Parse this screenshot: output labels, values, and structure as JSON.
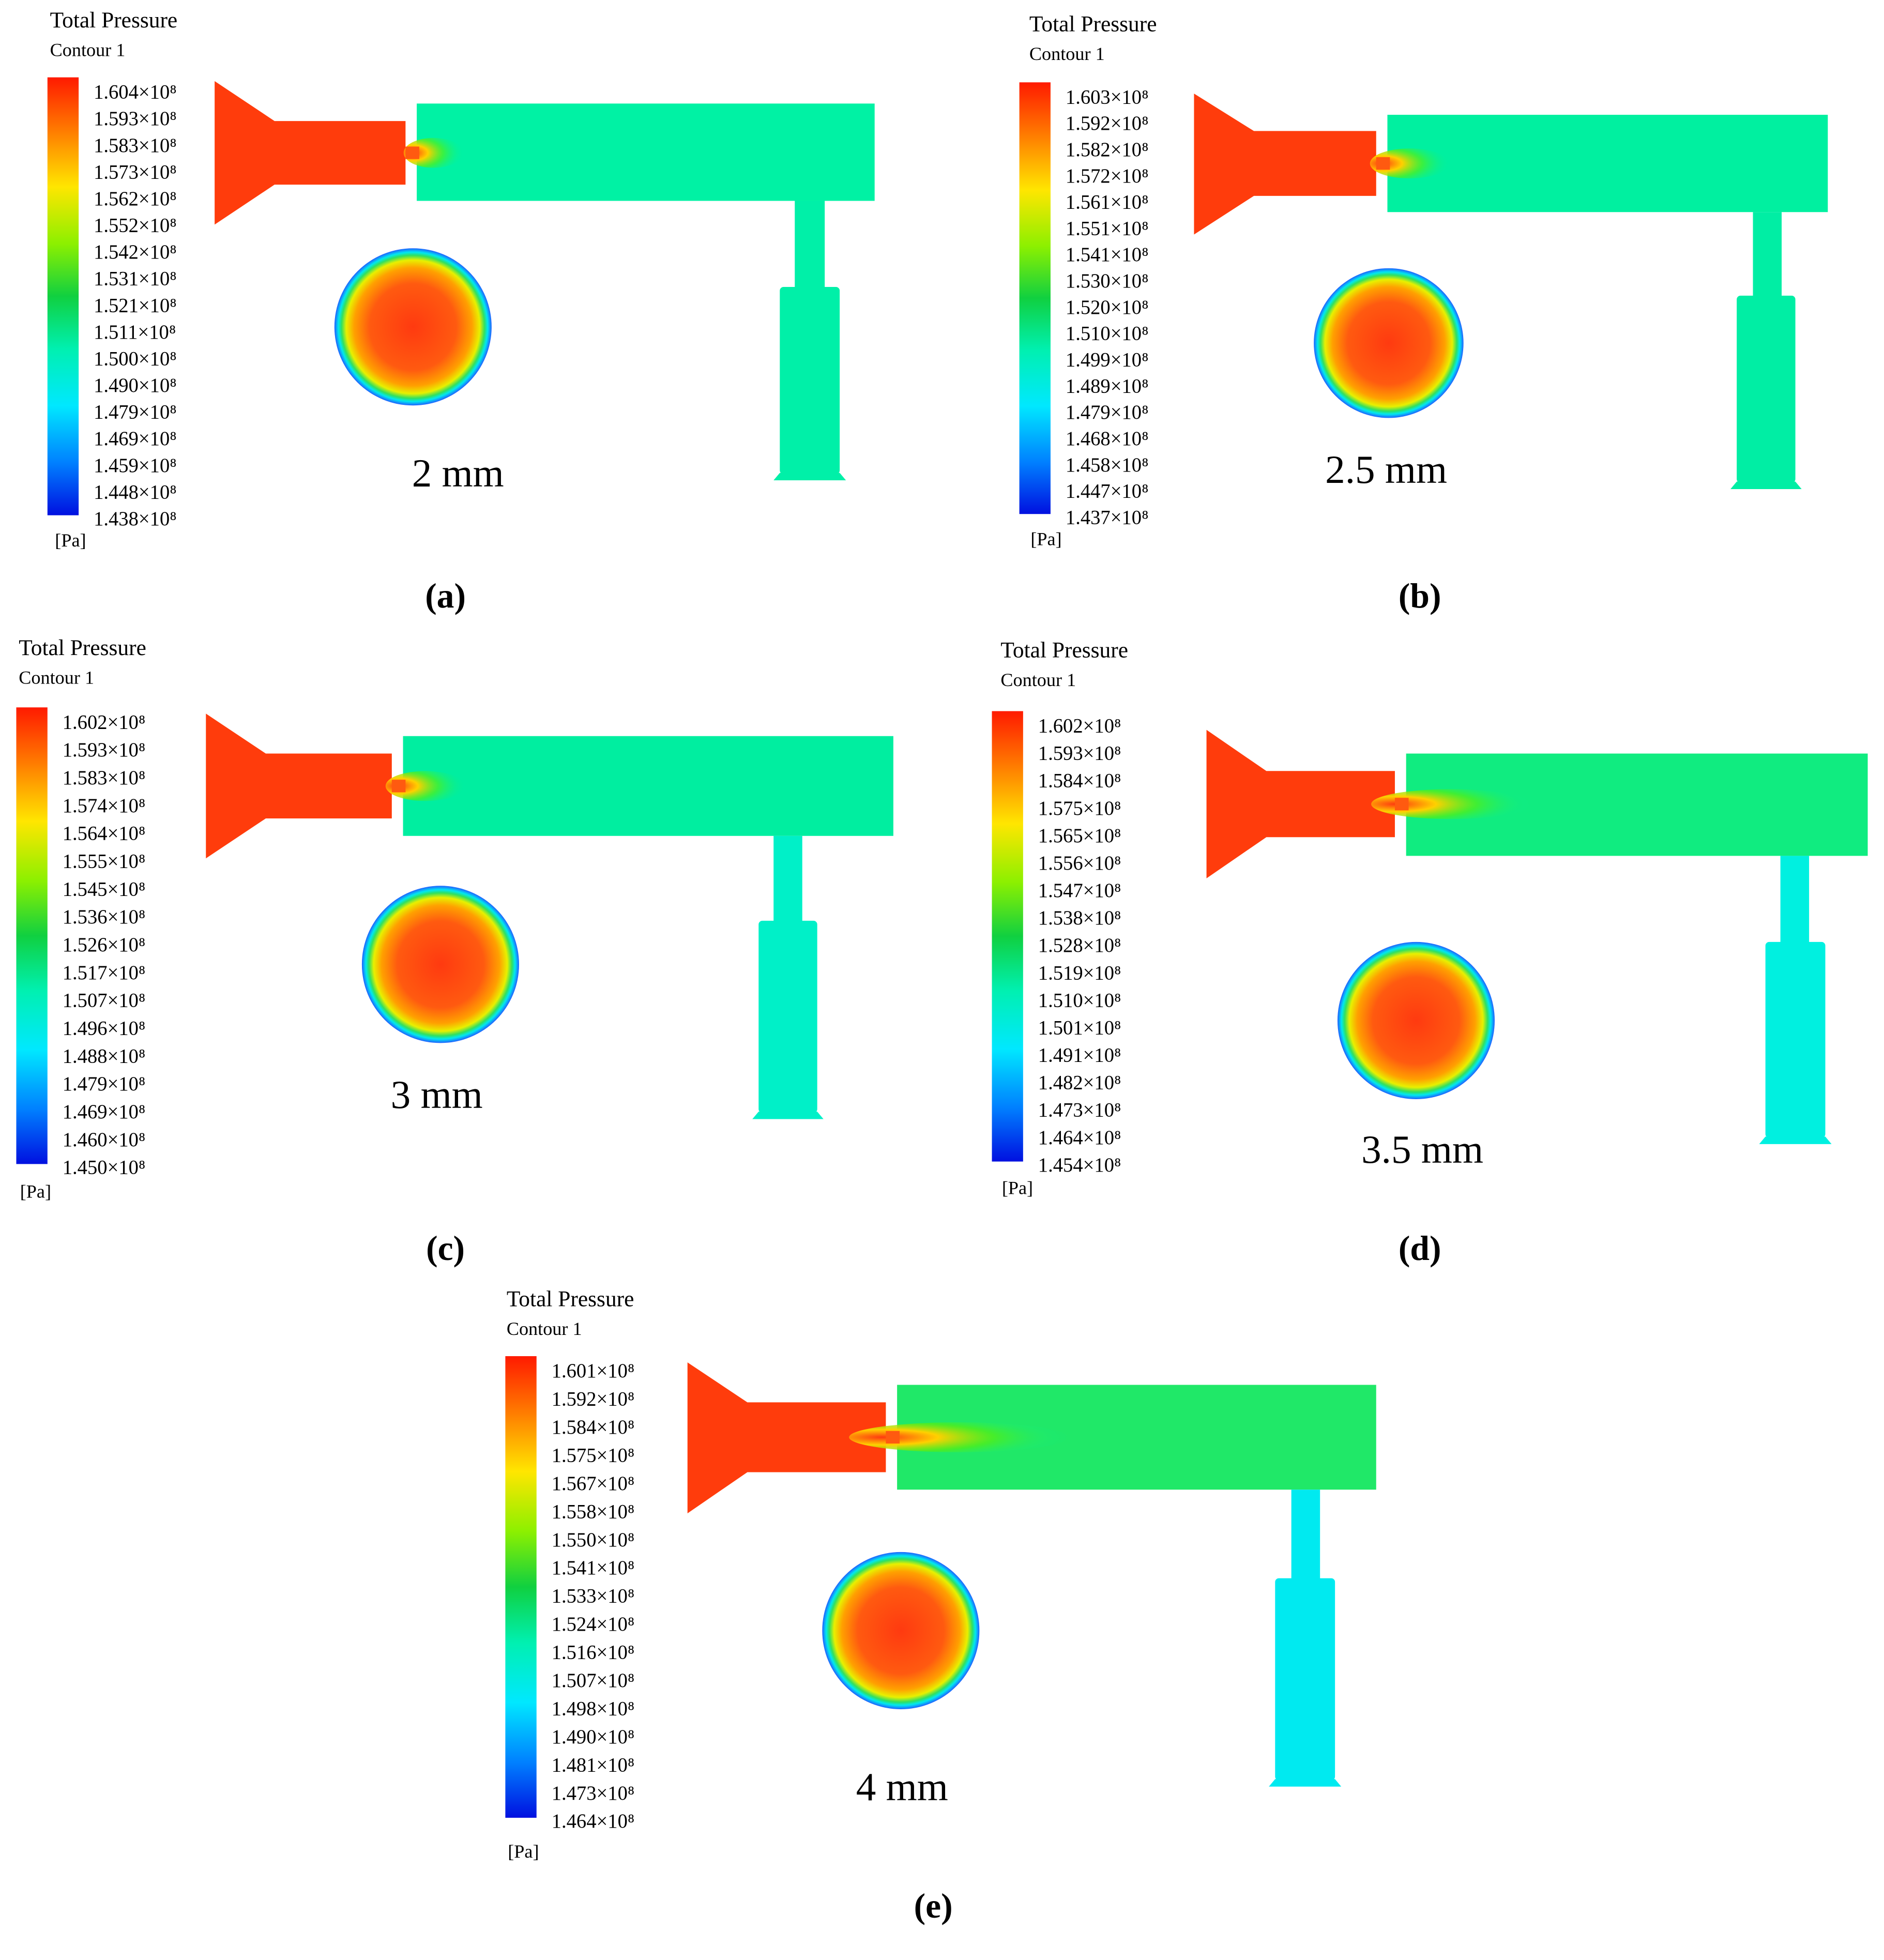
{
  "panels": [
    {
      "title": "Total Pressure",
      "subtitle": "Contour 1",
      "colorbar_labels": [
        "1.604×10⁸",
        "1.593×10⁸",
        "1.583×10⁸",
        "1.573×10⁸",
        "1.562×10⁸",
        "1.552×10⁸",
        "1.542×10⁸",
        "1.531×10⁸",
        "1.521×10⁸",
        "1.511×10⁸",
        "1.500×10⁸",
        "1.490×10⁸",
        "1.479×10⁸",
        "1.469×10⁸",
        "1.459×10⁸",
        "1.448×10⁸",
        "1.438×10⁸"
      ],
      "unit": "[Pa]",
      "dimension": "2 mm",
      "label": "(a)"
    },
    {
      "title": "Total Pressure",
      "subtitle": "Contour 1",
      "colorbar_labels": [
        "1.603×10⁸",
        "1.592×10⁸",
        "1.582×10⁸",
        "1.572×10⁸",
        "1.561×10⁸",
        "1.551×10⁸",
        "1.541×10⁸",
        "1.530×10⁸",
        "1.520×10⁸",
        "1.510×10⁸",
        "1.499×10⁸",
        "1.489×10⁸",
        "1.479×10⁸",
        "1.468×10⁸",
        "1.458×10⁸",
        "1.447×10⁸",
        "1.437×10⁸"
      ],
      "unit": "[Pa]",
      "dimension": "2.5 mm",
      "label": "(b)"
    },
    {
      "title": "Total Pressure",
      "subtitle": "Contour 1",
      "colorbar_labels": [
        "1.602×10⁸",
        "1.593×10⁸",
        "1.583×10⁸",
        "1.574×10⁸",
        "1.564×10⁸",
        "1.555×10⁸",
        "1.545×10⁸",
        "1.536×10⁸",
        "1.526×10⁸",
        "1.517×10⁸",
        "1.507×10⁸",
        "1.496×10⁸",
        "1.488×10⁸",
        "1.479×10⁸",
        "1.469×10⁸",
        "1.460×10⁸",
        "1.450×10⁸"
      ],
      "unit": "[Pa]",
      "dimension": "3 mm",
      "label": "(c)"
    },
    {
      "title": "Total Pressure",
      "subtitle": "Contour 1",
      "colorbar_labels": [
        "1.602×10⁸",
        "1.593×10⁸",
        "1.584×10⁸",
        "1.575×10⁸",
        "1.565×10⁸",
        "1.556×10⁸",
        "1.547×10⁸",
        "1.538×10⁸",
        "1.528×10⁸",
        "1.519×10⁸",
        "1.510×10⁸",
        "1.501×10⁸",
        "1.491×10⁸",
        "1.482×10⁸",
        "1.473×10⁸",
        "1.464×10⁸",
        "1.454×10⁸"
      ],
      "unit": "[Pa]",
      "dimension": "3.5 mm",
      "label": "(d)"
    },
    {
      "title": "Total Pressure",
      "subtitle": "Contour 1",
      "colorbar_labels": [
        "1.601×10⁸",
        "1.592×10⁸",
        "1.584×10⁸",
        "1.575×10⁸",
        "1.567×10⁸",
        "1.558×10⁸",
        "1.550×10⁸",
        "1.541×10⁸",
        "1.533×10⁸",
        "1.524×10⁸",
        "1.516×10⁸",
        "1.507×10⁸",
        "1.498×10⁸",
        "1.490×10⁸",
        "1.481×10⁸",
        "1.473×10⁸",
        "1.464×10⁸"
      ],
      "unit": "[Pa]",
      "dimension": "4 mm",
      "label": "(e)"
    }
  ]
}
